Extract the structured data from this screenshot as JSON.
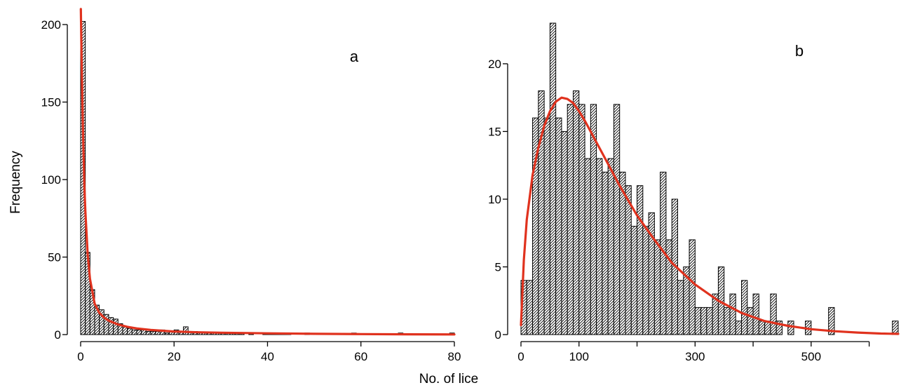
{
  "labels": {
    "ylabel": "Frequency",
    "xlabel": "No. of lice"
  },
  "chart_data": [
    {
      "type": "bar",
      "panel_label": "a",
      "x_tick_labels": [
        "0",
        "20",
        "40",
        "60",
        "80"
      ],
      "y_tick_labels": [
        "0",
        "50",
        "100",
        "150",
        "200"
      ],
      "xlim": [
        0,
        80
      ],
      "ylim": [
        0,
        200
      ],
      "bin_width": 1,
      "bin_starts": [
        0,
        1,
        2,
        3,
        4,
        5,
        6,
        7,
        8,
        9,
        10,
        11,
        12,
        13,
        14,
        15,
        16,
        17,
        18,
        19,
        20,
        21,
        22,
        23,
        24,
        25,
        26,
        27,
        28,
        29,
        30,
        31,
        32,
        33,
        34,
        35,
        36,
        37,
        38,
        39,
        40,
        41,
        42,
        43,
        44,
        45,
        46,
        47,
        48,
        49,
        50,
        51,
        52,
        53,
        54,
        55,
        56,
        57,
        58,
        59,
        60,
        61,
        62,
        63,
        64,
        65,
        66,
        67,
        68,
        69,
        70,
        71,
        72,
        73,
        74,
        75,
        76,
        77,
        78,
        79
      ],
      "values": [
        202,
        53,
        29,
        19,
        16,
        13,
        11,
        10,
        7,
        5,
        4,
        3,
        3,
        3,
        2,
        2,
        2,
        3,
        1,
        2,
        3,
        2,
        5,
        2,
        2,
        1,
        1,
        1,
        1,
        1,
        1,
        1,
        1,
        1,
        1,
        0,
        1,
        0,
        0,
        1,
        1,
        1,
        1,
        1,
        1,
        0,
        0,
        0,
        1,
        0,
        0,
        0,
        0,
        0,
        0,
        0,
        0,
        0,
        1,
        0,
        0,
        0,
        0,
        0,
        0,
        0,
        0,
        0,
        1,
        0,
        0,
        0,
        0,
        0,
        0,
        0,
        0,
        0,
        0,
        1
      ],
      "fit_curve": {
        "color": "#e0321e",
        "x": [
          0.05,
          0.2,
          0.5,
          0.8,
          1,
          1.5,
          2,
          3,
          4,
          5,
          6,
          8,
          10,
          12,
          15,
          20,
          25,
          30,
          40,
          50,
          60,
          70,
          80
        ],
        "y": [
          210,
          180,
          132,
          96,
          80,
          52,
          36,
          20,
          14,
          11,
          9,
          6.5,
          5,
          4,
          3,
          2,
          1.5,
          1.2,
          0.8,
          0.5,
          0.3,
          0.2,
          0.1
        ]
      }
    },
    {
      "type": "bar",
      "panel_label": "b",
      "x_tick_labels": [
        "0",
        "100",
        "300",
        "500"
      ],
      "y_tick_labels": [
        "0",
        "5",
        "10",
        "15",
        "20"
      ],
      "xlim": [
        0,
        650
      ],
      "ylim": [
        0,
        23
      ],
      "bin_width": 10,
      "bin_starts": [
        0,
        10,
        20,
        30,
        40,
        50,
        60,
        70,
        80,
        90,
        100,
        110,
        120,
        130,
        140,
        150,
        160,
        170,
        180,
        190,
        200,
        210,
        220,
        230,
        240,
        250,
        260,
        270,
        280,
        290,
        300,
        310,
        320,
        330,
        340,
        350,
        360,
        370,
        380,
        390,
        400,
        410,
        420,
        430,
        440,
        450,
        460,
        470,
        480,
        490,
        500,
        510,
        520,
        530,
        540,
        550,
        560,
        570,
        580,
        590,
        600,
        610,
        620,
        630,
        640
      ],
      "values": [
        4,
        4,
        16,
        18,
        16,
        23,
        16,
        15,
        17,
        18,
        17,
        13,
        17,
        13,
        12,
        13,
        17,
        12,
        11,
        8,
        11,
        8,
        9,
        7,
        12,
        7,
        10,
        4,
        5,
        7,
        2,
        2,
        2,
        3,
        5,
        2,
        3,
        1,
        4,
        2,
        3,
        1,
        1,
        3,
        1,
        0,
        1,
        0,
        0,
        1,
        0,
        0,
        0,
        2,
        0,
        0,
        0,
        0,
        0,
        0,
        0,
        0,
        0,
        0,
        1
      ],
      "fit_curve": {
        "color": "#e0321e",
        "x": [
          0,
          5,
          10,
          20,
          30,
          40,
          50,
          60,
          70,
          80,
          90,
          100,
          110,
          120,
          130,
          140,
          150,
          170,
          200,
          230,
          260,
          300,
          340,
          380,
          420,
          460,
          500,
          540,
          580,
          620,
          650
        ],
        "y": [
          0.7,
          5.5,
          8.5,
          11.8,
          13.8,
          15.4,
          16.5,
          17.2,
          17.5,
          17.4,
          17.1,
          16.5,
          15.8,
          15,
          14.2,
          13.4,
          12.6,
          11,
          8.8,
          7,
          5.3,
          3.7,
          2.5,
          1.6,
          1,
          0.65,
          0.4,
          0.25,
          0.15,
          0.08,
          0.05
        ]
      }
    }
  ]
}
